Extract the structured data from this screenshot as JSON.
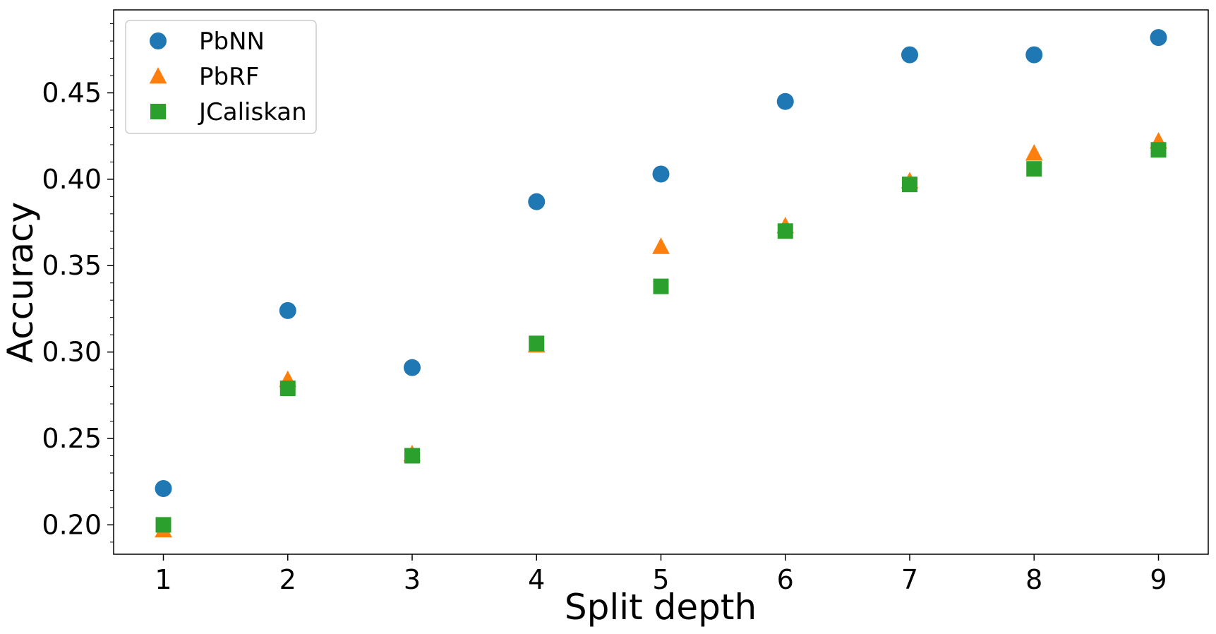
{
  "chart_data": {
    "type": "scatter",
    "title": "",
    "xlabel": "Split depth",
    "ylabel": "Accuracy",
    "x": [
      1,
      2,
      3,
      4,
      5,
      6,
      7,
      8,
      9
    ],
    "xlim": [
      0.6,
      9.4
    ],
    "ylim": [
      0.183,
      0.498
    ],
    "xticks": [
      1,
      2,
      3,
      4,
      5,
      6,
      7,
      8,
      9
    ],
    "xtick_labels": [
      "1",
      "2",
      "3",
      "4",
      "5",
      "6",
      "7",
      "8",
      "9"
    ],
    "yticks": [
      0.2,
      0.25,
      0.3,
      0.35,
      0.4,
      0.45
    ],
    "ytick_labels": [
      "0.20",
      "0.25",
      "0.30",
      "0.35",
      "0.40",
      "0.45"
    ],
    "grid": false,
    "legend_position": "top-left",
    "series": [
      {
        "name": "PbNN",
        "marker": "circle",
        "color": "#1f77b4",
        "values": [
          0.221,
          0.324,
          0.291,
          0.387,
          0.403,
          0.445,
          0.472,
          0.472,
          0.482
        ]
      },
      {
        "name": "PbRF",
        "marker": "triangle",
        "color": "#ff7f0e",
        "values": [
          0.197,
          0.284,
          0.241,
          0.304,
          0.361,
          0.373,
          0.399,
          0.415,
          0.422
        ]
      },
      {
        "name": "JCaliskan",
        "marker": "square",
        "color": "#2ca02c",
        "values": [
          0.2,
          0.279,
          0.24,
          0.305,
          0.338,
          0.37,
          0.397,
          0.406,
          0.417
        ]
      }
    ]
  }
}
